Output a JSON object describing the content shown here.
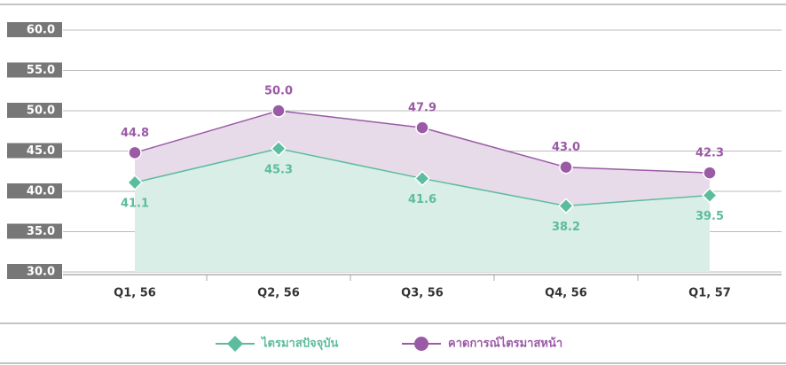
{
  "chart_data": {
    "type": "line",
    "categories": [
      "Q1, 56",
      "Q2, 56",
      "Q3, 56",
      "Q4, 56",
      "Q1, 57"
    ],
    "series": [
      {
        "name": "ไตรมาสปัจจุบัน",
        "color": "#5cbc9e",
        "fill": "#d9eee6",
        "marker": "diamond",
        "label_side": "below",
        "values": [
          41.1,
          45.3,
          41.6,
          38.2,
          39.5
        ],
        "value_labels": [
          "41.1",
          "45.3",
          "41.6",
          "38.2",
          "39.5"
        ]
      },
      {
        "name": "คาดการณ์ไตรมาสหน้า",
        "color": "#9b5aa6",
        "fill": "#e7dbea",
        "marker": "circle",
        "label_side": "above",
        "values": [
          44.8,
          50.0,
          47.9,
          43.0,
          42.3
        ],
        "value_labels": [
          "44.8",
          "50.0",
          "47.9",
          "43.0",
          "42.3"
        ]
      }
    ],
    "ylim": [
      30,
      60
    ],
    "yticks": [
      {
        "value": 30,
        "label": "30.0"
      },
      {
        "value": 35,
        "label": "35.0"
      },
      {
        "value": 40,
        "label": "40.0"
      },
      {
        "value": 45,
        "label": "45.0"
      },
      {
        "value": 50,
        "label": "50.0"
      },
      {
        "value": 55,
        "label": "55.0"
      },
      {
        "value": 60,
        "label": "60.0"
      }
    ],
    "grid": true,
    "legend": "bottom"
  }
}
